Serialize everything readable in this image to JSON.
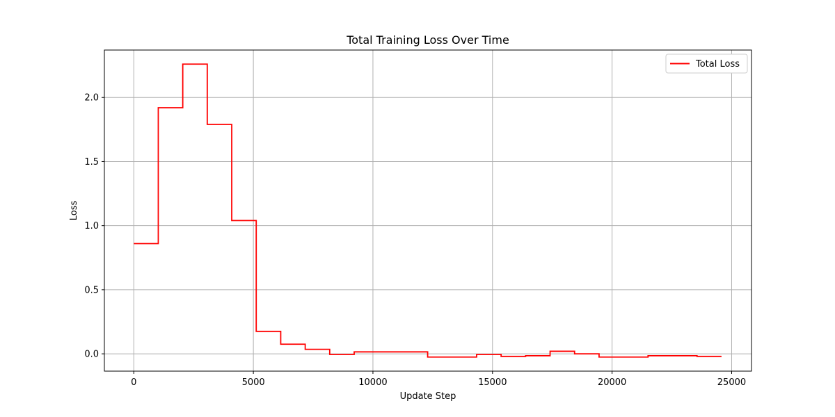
{
  "chart_data": {
    "type": "line",
    "step": true,
    "title": "Total Training Loss Over Time",
    "xlabel": "Update Step",
    "ylabel": "Loss",
    "xlim": [
      -1230,
      25830
    ],
    "ylim": [
      -0.135,
      2.37
    ],
    "xticks": [
      0,
      5000,
      10000,
      15000,
      20000,
      25000
    ],
    "yticks": [
      0.0,
      0.5,
      1.0,
      1.5,
      2.0
    ],
    "ytick_labels": [
      "0.0",
      "0.5",
      "1.0",
      "1.5",
      "2.0"
    ],
    "grid": true,
    "legend_position": "top-right",
    "series": [
      {
        "name": "Total Loss",
        "color": "#ff0000",
        "x": [
          0,
          1024,
          2048,
          3072,
          4096,
          5120,
          6144,
          7168,
          8192,
          9216,
          10240,
          11264,
          12288,
          13312,
          14336,
          15360,
          16384,
          17408,
          18432,
          19456,
          20480,
          21504,
          22528,
          23552,
          24576
        ],
        "y": [
          0.86,
          1.92,
          2.26,
          1.79,
          1.04,
          0.175,
          0.075,
          0.035,
          -0.005,
          0.015,
          0.015,
          0.015,
          -0.025,
          -0.025,
          -0.005,
          -0.02,
          -0.015,
          0.02,
          0.0,
          -0.025,
          -0.025,
          -0.015,
          -0.015,
          -0.02,
          -0.02
        ]
      }
    ]
  }
}
